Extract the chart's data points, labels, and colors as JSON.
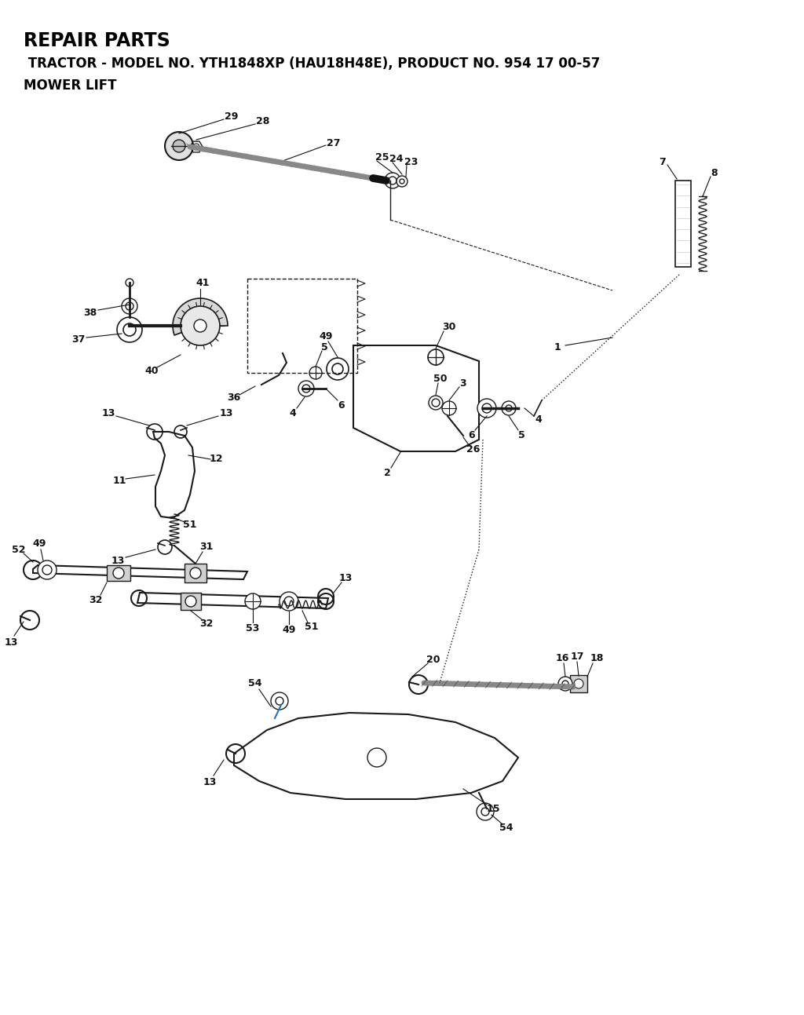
{
  "title": "REPAIR PARTS",
  "subtitle": " TRACTOR - MODEL NO. YTH1848XP (HAU18H48E), PRODUCT NO. 954 17 00-57",
  "subtitle2": "MOWER LIFT",
  "bg_color": "#ffffff",
  "text_color": "#000000",
  "line_color": "#1a1a1a",
  "title_fontsize": 17,
  "subtitle_fontsize": 12,
  "figsize": [
    10.24,
    12.93
  ],
  "dpi": 100
}
